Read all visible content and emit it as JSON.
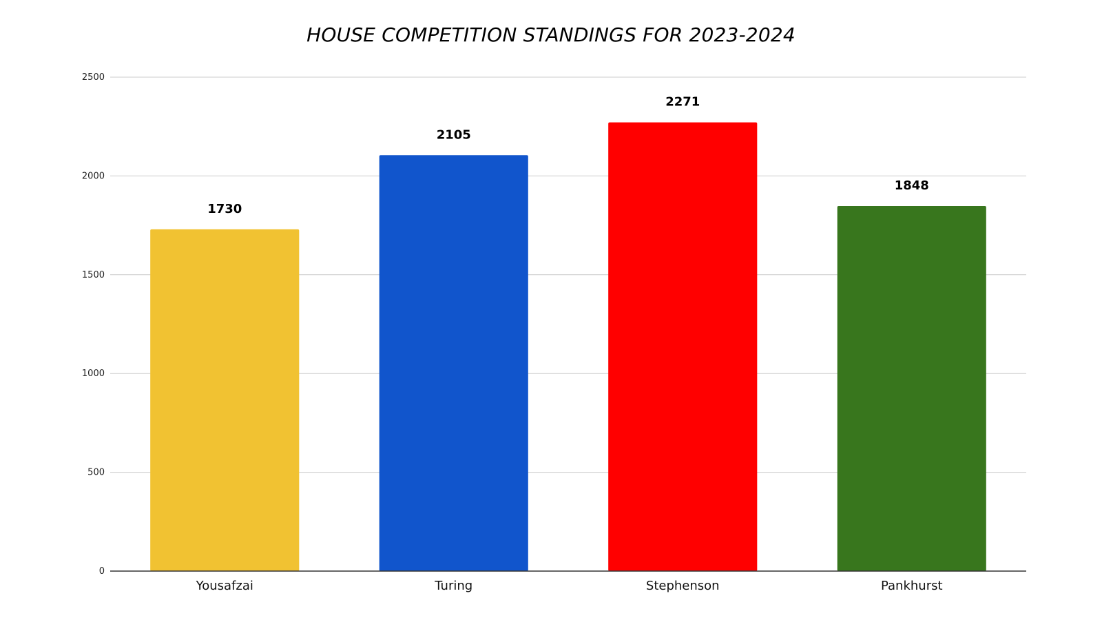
{
  "chart_data": {
    "type": "bar",
    "title": "HOUSE COMPETITION STANDINGS FOR 2023-2024",
    "xlabel": "",
    "ylabel": "",
    "categories": [
      "Yousafzai",
      "Turing",
      "Stephenson",
      "Pankhurst"
    ],
    "values": [
      1730,
      2105,
      2271,
      1848
    ],
    "data_labels": [
      "1730",
      "2105",
      "2271",
      "1848"
    ],
    "colors": [
      "#f1c232",
      "#1155cc",
      "#ff0000",
      "#38761d"
    ],
    "ylim": [
      0,
      2500
    ],
    "yticks": [
      0,
      500,
      1000,
      1500,
      2000,
      2500
    ],
    "ytick_labels": [
      "0",
      "500",
      "1000",
      "1500",
      "2000",
      "2500"
    ],
    "grid": true,
    "legend": "none",
    "gridline_color": "#cccccc",
    "axis_color": "#333333"
  }
}
